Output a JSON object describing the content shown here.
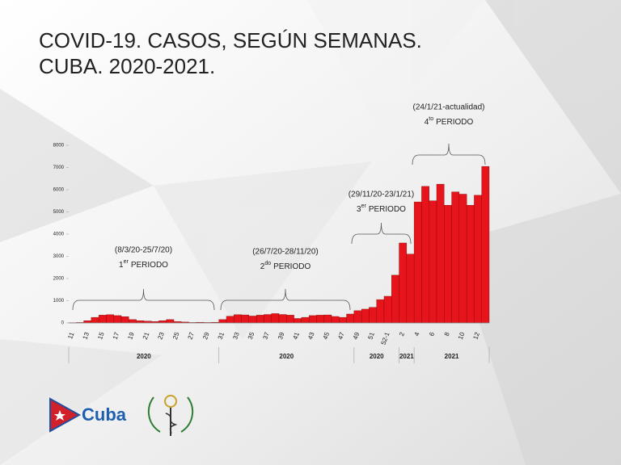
{
  "title_lines": [
    "COVID-19. CASOS, SEGÚN SEMANAS.",
    "CUBA. 2020-2021."
  ],
  "chart_data": {
    "type": "bar",
    "categories": [
      "11",
      null,
      "13",
      null,
      "15",
      null,
      "17",
      null,
      "19",
      null,
      "21",
      null,
      "23",
      null,
      "25",
      null,
      "27",
      null,
      "29",
      null,
      "31",
      null,
      "33",
      null,
      "35",
      null,
      "37",
      null,
      "39",
      null,
      "41",
      null,
      "43",
      null,
      "45",
      null,
      "47",
      null,
      "49",
      null,
      "51",
      null,
      "52-1",
      null,
      "2",
      null,
      "4",
      null,
      "6",
      null,
      "8",
      null,
      "10",
      null,
      "12",
      null
    ],
    "values": [
      10,
      20,
      100,
      250,
      350,
      370,
      330,
      280,
      150,
      100,
      80,
      60,
      100,
      150,
      60,
      40,
      20,
      30,
      20,
      30,
      150,
      300,
      370,
      360,
      310,
      350,
      380,
      420,
      380,
      350,
      200,
      250,
      330,
      350,
      360,
      290,
      250,
      400,
      550,
      620,
      700,
      1050,
      1200,
      2150,
      3600,
      3100,
      5450,
      6150,
      5500,
      6250,
      5300,
      5900,
      5800,
      5300,
      5750,
      7050
    ],
    "color": "#e8141b",
    "ylim": [
      0,
      8000
    ],
    "yticks": [
      0,
      1000,
      2000,
      3000,
      4000,
      5000,
      6000,
      7000,
      8000
    ],
    "year_groups": [
      "2020",
      "2020",
      "2020",
      "2021",
      "2021"
    ],
    "periods": [
      {
        "range": "(8/3/20-25/7/20)",
        "number": "1",
        "suffix": "er",
        "label": "PERIODO"
      },
      {
        "range": "(26/7/20-28/11/20)",
        "number": "2",
        "suffix": "do",
        "label": "PERIODO"
      },
      {
        "range": "(29/11/20-23/1/21)",
        "number": "3",
        "suffix": "er",
        "label": "PERIODO"
      },
      {
        "range": "(24/1/21-actualidad)",
        "number": "4",
        "suffix": "to",
        "label": "PERIODO"
      }
    ]
  },
  "logo_text": "Cuba"
}
